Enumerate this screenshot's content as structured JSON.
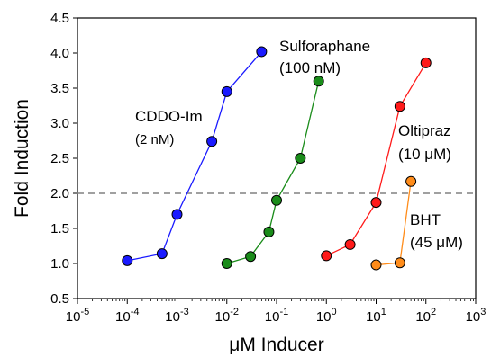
{
  "chart_data": {
    "type": "scatter",
    "xscale": "log",
    "xlim": [
      1e-05,
      1000
    ],
    "ylim": [
      0.5,
      4.5
    ],
    "xlabel": "μM Inducer",
    "ylabel": "Fold Induction",
    "x_ticks": [
      {
        "value": 1e-05,
        "base": "10",
        "exp": "-5"
      },
      {
        "value": 0.0001,
        "base": "10",
        "exp": "-4"
      },
      {
        "value": 0.001,
        "base": "10",
        "exp": "-3"
      },
      {
        "value": 0.01,
        "base": "10",
        "exp": "-2"
      },
      {
        "value": 0.1,
        "base": "10",
        "exp": "-1"
      },
      {
        "value": 1,
        "base": "10",
        "exp": "0"
      },
      {
        "value": 10,
        "base": "10",
        "exp": "1"
      },
      {
        "value": 100,
        "base": "10",
        "exp": "2"
      },
      {
        "value": 1000,
        "base": "10",
        "exp": "3"
      }
    ],
    "y_ticks": [
      "0.5",
      "1.0",
      "1.5",
      "2.0",
      "2.5",
      "3.0",
      "3.5",
      "4.0",
      "4.5"
    ],
    "reference_line": {
      "y": 2.0,
      "style": "dashed",
      "color": "#808080"
    },
    "series": [
      {
        "name": "CDDO-Im",
        "color": "#1a1aff",
        "points": [
          [
            0.0001,
            1.04
          ],
          [
            0.0005,
            1.14
          ],
          [
            0.001,
            1.7
          ],
          [
            0.005,
            2.74
          ],
          [
            0.01,
            3.45
          ],
          [
            0.05,
            4.02
          ]
        ]
      },
      {
        "name": "Sulforaphane",
        "color": "#1a8c1a",
        "points": [
          [
            0.01,
            1.0
          ],
          [
            0.03,
            1.1
          ],
          [
            0.07,
            1.45
          ],
          [
            0.1,
            1.9
          ],
          [
            0.3,
            2.5
          ],
          [
            0.7,
            3.6
          ]
        ]
      },
      {
        "name": "Oltipraz",
        "color": "#ff1a1a",
        "points": [
          [
            1,
            1.11
          ],
          [
            3,
            1.27
          ],
          [
            10,
            1.87
          ],
          [
            30,
            3.24
          ],
          [
            100,
            3.86
          ]
        ]
      },
      {
        "name": "BHT",
        "color": "#ff8c1a",
        "points": [
          [
            10,
            0.98
          ],
          [
            30,
            1.01
          ],
          [
            50,
            2.17
          ]
        ]
      }
    ],
    "annotations": [
      {
        "key": "cddo",
        "name": "CDDO-Im",
        "detail": "(2 nM)"
      },
      {
        "key": "sulf",
        "name": "Sulforaphane",
        "detail": "(100 nM)"
      },
      {
        "key": "olti",
        "name": "Oltipraz",
        "detail_prefix": "(10 ",
        "detail_unit": "μM)"
      },
      {
        "key": "bht",
        "name": "BHT",
        "detail_prefix": "(45 ",
        "detail_unit": "μM)"
      }
    ]
  }
}
